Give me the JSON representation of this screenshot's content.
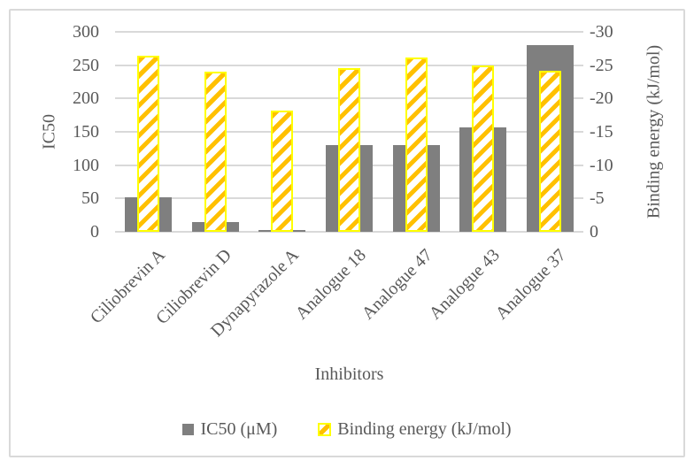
{
  "figure": {
    "background_color": "#FFFFFF",
    "border_color": "#D9D9D9",
    "gridline_color": "#D9D9D9",
    "text_color": "#595959"
  },
  "chart_data": {
    "type": "bar",
    "title": "",
    "categories": [
      "Ciliobrevin A",
      "Ciliobrevin D",
      "Dynapyrazole A",
      "Analogue 18",
      "Analogue 47",
      "Analogue 43",
      "Analogue 37"
    ],
    "series": [
      {
        "name": "IC50 (μM)",
        "axis": "left",
        "style": "solid",
        "color": "#7F7F7F",
        "values": [
          52,
          15,
          3,
          130,
          130,
          157,
          280
        ]
      },
      {
        "name": "Binding energy (kJ/mol)",
        "axis": "right",
        "style": "diagonal-hatch",
        "stripe_color": "#FFC000",
        "border_color": "#FFFF00",
        "values": [
          -26.4,
          -24.0,
          -18.2,
          -24.5,
          -26.2,
          -25.0,
          -24.2
        ]
      }
    ],
    "left_axis": {
      "title": "IC50",
      "min": 0,
      "max": 300,
      "step": 50,
      "ticks": [
        "0",
        "50",
        "100",
        "150",
        "200",
        "250",
        "300"
      ]
    },
    "right_axis": {
      "title": "Binding energy (kJ/mol)",
      "min": 0,
      "max": -30,
      "step": -5,
      "ticks": [
        "0",
        "-5",
        "-10",
        "-15",
        "-20",
        "-25",
        "-30"
      ]
    },
    "x_axis": {
      "title": "Inhibitors"
    },
    "legend": [
      {
        "label": "IC50 (μM)",
        "swatch": "gray-square"
      },
      {
        "label": "Binding energy (kJ/mol)",
        "swatch": "yellow-hatched-square"
      }
    ],
    "grid": true,
    "legend_position": "bottom",
    "bar_layout": "overlapped-center"
  }
}
